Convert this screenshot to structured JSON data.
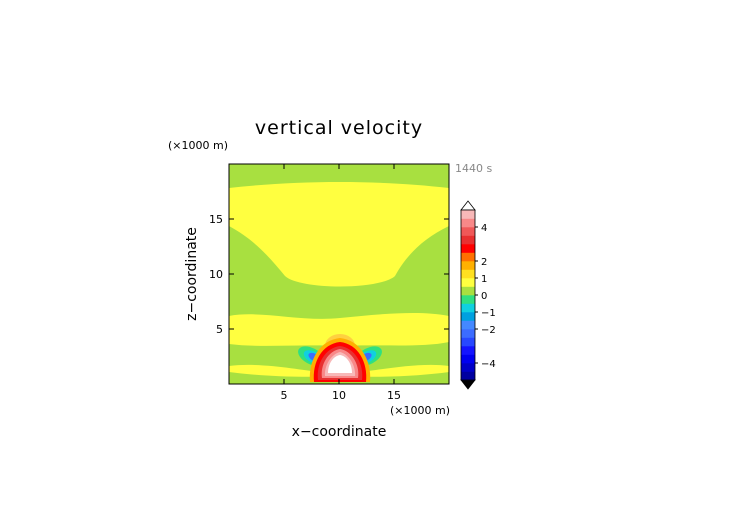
{
  "chart_data": {
    "type": "heatmap",
    "subtype": "filled-contour",
    "title": "vertical velocity",
    "time_label": "1440 s",
    "xlabel": "x−coordinate",
    "ylabel": "z−coordinate",
    "x_unit": "(×1000 m)",
    "y_unit": "(×1000 m)",
    "xlim": [
      0,
      20
    ],
    "ylim": [
      0,
      20
    ],
    "x_ticks": [
      5,
      10,
      15
    ],
    "y_ticks": [
      5,
      10,
      15
    ],
    "colorbar": {
      "levels": [
        -5,
        -4.5,
        -4,
        -3.5,
        -3,
        -2.5,
        -2,
        -1.5,
        -1,
        -0.5,
        0,
        0.5,
        1,
        1.5,
        2,
        2.5,
        3,
        3.5,
        4,
        4.5,
        5
      ],
      "colors": [
        "#0000a0",
        "#0000c8",
        "#0000f0",
        "#1414ff",
        "#2848ff",
        "#3c6cff",
        "#4488ff",
        "#00a0e0",
        "#10d0e0",
        "#30e080",
        "#a8e040",
        "#ffff40",
        "#ffe020",
        "#ffb000",
        "#ff7000",
        "#ff0000",
        "#e83030",
        "#f05858",
        "#f88888",
        "#f8b8b8"
      ],
      "tick_labels": [
        "4",
        "2",
        "1",
        "0",
        "−1",
        "−2",
        "−4"
      ],
      "tick_values": [
        4,
        2,
        1,
        0,
        -1,
        -2,
        -4
      ],
      "extend": "both",
      "over_color": "#ffffff",
      "under_color": "#000000"
    },
    "background_color": "#a8e040",
    "field_features": [
      {
        "type": "band",
        "value": 0.2,
        "color": "#ffff40",
        "x": [
          0,
          20
        ],
        "z_bottom_edges": [
          14.5,
          14.5,
          12.5,
          10,
          10,
          12.5,
          14.5
        ],
        "z_top": 17.5
      },
      {
        "type": "band",
        "value": 0.2,
        "color": "#ffff40",
        "x": [
          0,
          20
        ],
        "z_bottom": 4.8,
        "z_top": 6.2
      },
      {
        "type": "updraft",
        "value": 5.5,
        "x_center": 10,
        "z_base": 0.8,
        "z_top": 3.8,
        "half_width": 2.0
      },
      {
        "type": "downdraft",
        "value": -1.8,
        "x_center": 7.7,
        "z_center": 2.5
      },
      {
        "type": "downdraft",
        "value": -1.8,
        "x_center": 12.3,
        "z_center": 2.5
      }
    ]
  }
}
